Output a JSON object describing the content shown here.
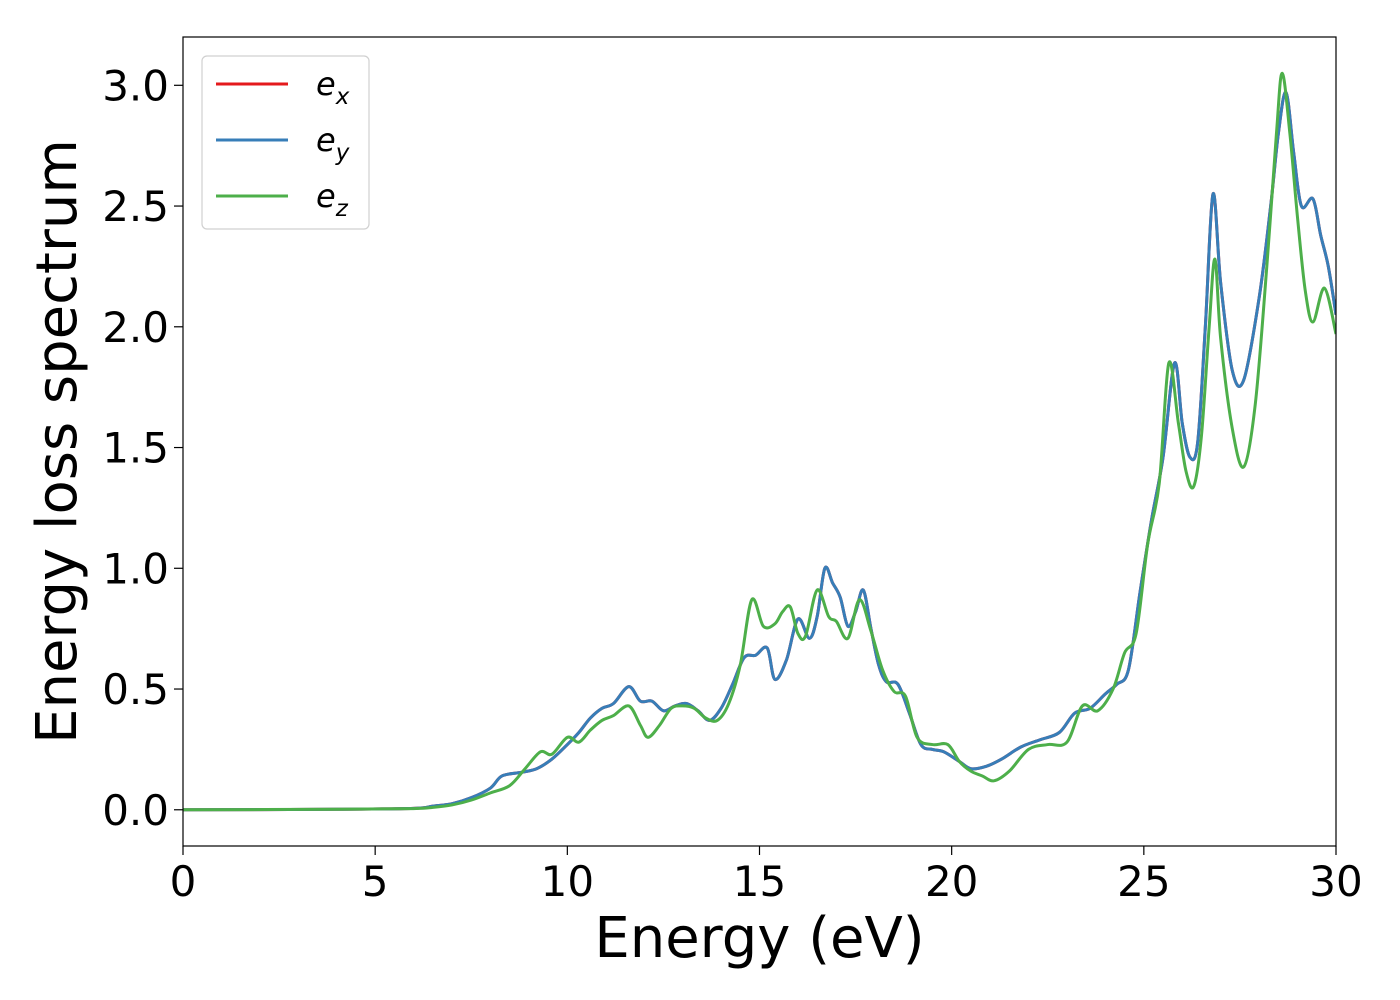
{
  "chart_data": {
    "type": "line",
    "xlabel": "Energy (eV)",
    "ylabel": "Energy loss spectrum",
    "xlim": [
      0,
      30
    ],
    "ylim": [
      -0.15,
      3.2
    ],
    "xticks": [
      0,
      5,
      10,
      15,
      20,
      25,
      30
    ],
    "yticks": [
      0.0,
      0.5,
      1.0,
      1.5,
      2.0,
      2.5,
      3.0
    ],
    "xtick_labels": [
      "0",
      "5",
      "10",
      "15",
      "20",
      "25",
      "30"
    ],
    "ytick_labels": [
      "0.0",
      "0.5",
      "1.0",
      "1.5",
      "2.0",
      "2.5",
      "3.0"
    ],
    "grid": false,
    "legend_position": "top-left",
    "colors": {
      "e_x": "#e41a1c",
      "e_y": "#377eb8",
      "e_z": "#4daf4a"
    },
    "series": [
      {
        "name": "e_x",
        "label_base": "e",
        "label_sub": "x",
        "color": "#e41a1c",
        "x": [
          0,
          4,
          6,
          6.5,
          7,
          7.5,
          8,
          8.3,
          8.8,
          9.2,
          9.6,
          10,
          10.3,
          10.6,
          10.9,
          11.2,
          11.6,
          11.9,
          12.2,
          12.5,
          12.8,
          13.1,
          13.4,
          13.7,
          14,
          14.3,
          14.6,
          14.9,
          15.2,
          15.4,
          15.7,
          16,
          16.3,
          16.5,
          16.7,
          16.9,
          17.1,
          17.3,
          17.5,
          17.7,
          17.9,
          18.1,
          18.3,
          18.6,
          18.9,
          19.2,
          19.5,
          19.8,
          20.2,
          20.5,
          20.9,
          21.3,
          21.8,
          22.3,
          22.8,
          23.2,
          23.6,
          24,
          24.3,
          24.6,
          24.9,
          25.2,
          25.5,
          25.8,
          26,
          26.2,
          26.4,
          26.6,
          26.8,
          27,
          27.3,
          27.6,
          28,
          28.3,
          28.5,
          28.7,
          28.9,
          29.1,
          29.4,
          29.6,
          29.8,
          30
        ],
        "y": [
          0,
          0.002,
          0.006,
          0.015,
          0.025,
          0.05,
          0.09,
          0.14,
          0.155,
          0.17,
          0.21,
          0.27,
          0.32,
          0.38,
          0.42,
          0.44,
          0.51,
          0.45,
          0.45,
          0.41,
          0.43,
          0.44,
          0.41,
          0.37,
          0.42,
          0.52,
          0.63,
          0.64,
          0.67,
          0.54,
          0.62,
          0.79,
          0.71,
          0.8,
          1.0,
          0.94,
          0.88,
          0.76,
          0.82,
          0.91,
          0.75,
          0.6,
          0.53,
          0.52,
          0.4,
          0.27,
          0.25,
          0.24,
          0.2,
          0.17,
          0.18,
          0.21,
          0.26,
          0.29,
          0.32,
          0.4,
          0.42,
          0.48,
          0.52,
          0.58,
          0.9,
          1.2,
          1.46,
          1.85,
          1.6,
          1.46,
          1.52,
          2.0,
          2.55,
          2.18,
          1.82,
          1.78,
          2.12,
          2.5,
          2.8,
          2.97,
          2.72,
          2.5,
          2.53,
          2.38,
          2.25,
          2.05
        ]
      },
      {
        "name": "e_y",
        "label_base": "e",
        "label_sub": "y",
        "color": "#377eb8",
        "x": [
          0,
          4,
          6,
          6.5,
          7,
          7.5,
          8,
          8.3,
          8.8,
          9.2,
          9.6,
          10,
          10.3,
          10.6,
          10.9,
          11.2,
          11.6,
          11.9,
          12.2,
          12.5,
          12.8,
          13.1,
          13.4,
          13.7,
          14,
          14.3,
          14.6,
          14.9,
          15.2,
          15.4,
          15.7,
          16,
          16.3,
          16.5,
          16.7,
          16.9,
          17.1,
          17.3,
          17.5,
          17.7,
          17.9,
          18.1,
          18.3,
          18.6,
          18.9,
          19.2,
          19.5,
          19.8,
          20.2,
          20.5,
          20.9,
          21.3,
          21.8,
          22.3,
          22.8,
          23.2,
          23.6,
          24,
          24.3,
          24.6,
          24.9,
          25.2,
          25.5,
          25.8,
          26,
          26.2,
          26.4,
          26.6,
          26.8,
          27,
          27.3,
          27.6,
          28,
          28.3,
          28.5,
          28.7,
          28.9,
          29.1,
          29.4,
          29.6,
          29.8,
          30
        ],
        "y": [
          0,
          0.002,
          0.006,
          0.015,
          0.025,
          0.05,
          0.09,
          0.14,
          0.155,
          0.17,
          0.21,
          0.27,
          0.32,
          0.38,
          0.42,
          0.44,
          0.51,
          0.45,
          0.45,
          0.41,
          0.43,
          0.44,
          0.41,
          0.37,
          0.42,
          0.52,
          0.63,
          0.64,
          0.67,
          0.54,
          0.62,
          0.79,
          0.71,
          0.8,
          1.0,
          0.94,
          0.88,
          0.76,
          0.82,
          0.91,
          0.75,
          0.6,
          0.53,
          0.52,
          0.4,
          0.27,
          0.25,
          0.24,
          0.2,
          0.17,
          0.18,
          0.21,
          0.26,
          0.29,
          0.32,
          0.4,
          0.42,
          0.48,
          0.52,
          0.58,
          0.9,
          1.2,
          1.46,
          1.85,
          1.6,
          1.46,
          1.52,
          2.0,
          2.55,
          2.18,
          1.82,
          1.78,
          2.12,
          2.5,
          2.8,
          2.97,
          2.72,
          2.5,
          2.53,
          2.38,
          2.25,
          2.05
        ]
      },
      {
        "name": "e_z",
        "label_base": "e",
        "label_sub": "z",
        "color": "#4daf4a",
        "x": [
          0,
          4,
          6,
          6.5,
          7,
          7.5,
          8,
          8.5,
          8.9,
          9.3,
          9.6,
          10,
          10.3,
          10.6,
          10.9,
          11.2,
          11.6,
          11.9,
          12.1,
          12.4,
          12.7,
          13,
          13.3,
          13.6,
          13.9,
          14.2,
          14.5,
          14.8,
          15.1,
          15.4,
          15.6,
          15.8,
          16.0,
          16.2,
          16.5,
          16.8,
          17.0,
          17.3,
          17.6,
          17.9,
          18.2,
          18.5,
          18.8,
          19.1,
          19.5,
          19.9,
          20.2,
          20.5,
          20.8,
          21.1,
          21.5,
          22,
          22.5,
          23,
          23.4,
          23.8,
          24.2,
          24.5,
          24.8,
          25.1,
          25.4,
          25.65,
          25.9,
          26.1,
          26.3,
          26.5,
          26.7,
          26.85,
          27.0,
          27.3,
          27.6,
          27.9,
          28.2,
          28.45,
          28.6,
          28.8,
          29.0,
          29.2,
          29.4,
          29.7,
          30
        ],
        "y": [
          0,
          0.002,
          0.005,
          0.01,
          0.02,
          0.04,
          0.07,
          0.1,
          0.17,
          0.24,
          0.23,
          0.3,
          0.28,
          0.33,
          0.37,
          0.39,
          0.43,
          0.35,
          0.3,
          0.35,
          0.42,
          0.43,
          0.42,
          0.38,
          0.37,
          0.44,
          0.6,
          0.87,
          0.76,
          0.77,
          0.82,
          0.84,
          0.73,
          0.72,
          0.91,
          0.8,
          0.78,
          0.71,
          0.87,
          0.74,
          0.58,
          0.49,
          0.47,
          0.3,
          0.27,
          0.27,
          0.2,
          0.16,
          0.14,
          0.12,
          0.16,
          0.25,
          0.27,
          0.28,
          0.43,
          0.41,
          0.5,
          0.65,
          0.73,
          1.1,
          1.35,
          1.85,
          1.6,
          1.4,
          1.34,
          1.55,
          2.0,
          2.28,
          1.95,
          1.58,
          1.42,
          1.68,
          2.25,
          2.8,
          3.05,
          2.8,
          2.45,
          2.15,
          2.02,
          2.16,
          1.97
        ]
      }
    ]
  }
}
